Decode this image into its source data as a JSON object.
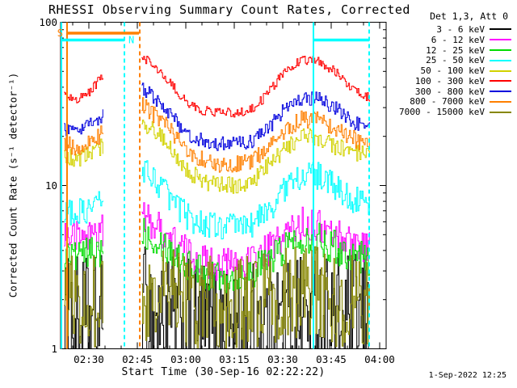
{
  "chart_data": {
    "type": "line",
    "title": "RHESSI Observing Summary Count Rates, Corrected",
    "legend_title": "Det 1,3, Att 0",
    "created": "1-Sep-2022 12:25",
    "x_axis": {
      "label": "Start Time (30-Sep-16 02:22:22)",
      "time_unit": "minutes since 00:00 UT",
      "range": [
        141.25,
        242.0
      ],
      "major_ticks": [
        {
          "t": 150,
          "label": "02:30"
        },
        {
          "t": 165,
          "label": "02:45"
        },
        {
          "t": 180,
          "label": "03:00"
        },
        {
          "t": 195,
          "label": "03:15"
        },
        {
          "t": 210,
          "label": "03:30"
        },
        {
          "t": 225,
          "label": "03:45"
        },
        {
          "t": 240,
          "label": "04:00"
        }
      ],
      "minor_tick_minutes": 5
    },
    "y_axis": {
      "label": "Corrected Count Rate (s⁻¹ detector⁻¹)",
      "scale": "log",
      "range": [
        1,
        100
      ],
      "major_ticks": [
        {
          "value": 100,
          "label": "100"
        },
        {
          "value": 10,
          "label": "10"
        },
        {
          "value": 1,
          "label": "1"
        }
      ]
    },
    "segment_times": {
      "seg1": [
        142.3,
        146,
        150,
        154.5
      ],
      "seg2": [
        166.3,
        171,
        176,
        181,
        186,
        191,
        196,
        201,
        206,
        211,
        216,
        221,
        226,
        231,
        237
      ]
    },
    "series": [
      {
        "name": "3 - 6 keV",
        "color": "#000000",
        "noise": 0.42,
        "seg1": [
          1.45,
          1.4,
          1.4,
          1.5
        ],
        "seg2": [
          1.7,
          1.55,
          1.45,
          1.35,
          1.3,
          1.3,
          1.3,
          1.35,
          1.45,
          1.55,
          1.6,
          1.55,
          1.5,
          1.45,
          1.4
        ]
      },
      {
        "name": "6 - 12 keV",
        "color": "#ff00ff",
        "noise": 0.105,
        "seg1": [
          5.0,
          4.8,
          5.0,
          5.4
        ],
        "seg2": [
          6.5,
          5.6,
          4.6,
          3.8,
          3.4,
          3.3,
          3.3,
          3.5,
          4.1,
          5.1,
          5.8,
          5.6,
          5.0,
          4.6,
          4.2
        ]
      },
      {
        "name": "12 - 25 keV",
        "color": "#00dc00",
        "noise": 0.105,
        "seg1": [
          3.8,
          3.7,
          3.8,
          4.1
        ],
        "seg2": [
          5.4,
          4.7,
          3.9,
          3.2,
          2.9,
          2.8,
          2.8,
          3.0,
          3.5,
          4.3,
          4.9,
          4.7,
          4.2,
          3.8,
          3.5
        ]
      },
      {
        "name": "25 - 50 keV",
        "color": "#00ffff",
        "noise": 0.085,
        "seg1": [
          7.0,
          6.7,
          7.2,
          8.2
        ],
        "seg2": [
          13,
          10.5,
          8.0,
          6.3,
          5.8,
          5.6,
          5.6,
          5.9,
          7.2,
          9.8,
          11.8,
          11.4,
          9.8,
          8.4,
          7.4
        ]
      },
      {
        "name": "50 - 100 keV",
        "color": "#d2d200",
        "noise": 0.055,
        "seg1": [
          15,
          14.5,
          15.5,
          17.5
        ],
        "seg2": [
          25,
          21,
          16.5,
          12,
          10.5,
          10,
          10,
          10.8,
          13.5,
          17,
          20,
          19.5,
          17.5,
          16,
          15
        ]
      },
      {
        "name": "100 - 300 keV",
        "color": "#ff0000",
        "noise": 0.03,
        "seg1": [
          35,
          33,
          37,
          48
        ],
        "seg2": [
          62,
          52,
          40,
          31,
          28.5,
          28,
          28,
          29.5,
          38,
          52,
          59,
          58,
          50,
          40,
          34
        ]
      },
      {
        "name": "300 - 800 keV",
        "color": "#0000dd",
        "noise": 0.045,
        "seg1": [
          22,
          21,
          23,
          27
        ],
        "seg2": [
          40,
          33,
          26,
          20,
          18.5,
          18,
          18,
          19,
          23,
          30,
          34,
          34,
          30,
          25,
          22
        ]
      },
      {
        "name": "800 - 7000 keV",
        "color": "#ff8000",
        "noise": 0.055,
        "seg1": [
          18,
          17,
          18,
          21
        ],
        "seg2": [
          31,
          26,
          21,
          15.5,
          14,
          13.5,
          13.5,
          14.5,
          17.5,
          22,
          25.5,
          25,
          22.5,
          19.5,
          17.5
        ]
      },
      {
        "name": "7000 - 15000 keV",
        "color": "#878700",
        "noise": 0.3,
        "seg1": [
          1.9,
          1.85,
          1.9,
          2.0
        ],
        "seg2": [
          2.2,
          2.1,
          2.0,
          1.9,
          1.85,
          1.85,
          1.85,
          1.9,
          2.0,
          2.1,
          2.2,
          2.15,
          2.05,
          2.0,
          1.95
        ]
      }
    ],
    "overlays": {
      "vlines": [
        {
          "t": 141.5,
          "color": "#00ffff",
          "style": "solid",
          "name": "night1-start-line"
        },
        {
          "t": 143.25,
          "color": "#ff8000",
          "style": "solid",
          "name": "saa-start-line"
        },
        {
          "t": 161.0,
          "color": "#00ffff",
          "style": "dashed",
          "name": "night1-end-line"
        },
        {
          "t": 165.75,
          "color": "#ff8000",
          "style": "dashed",
          "name": "saa-end-line"
        },
        {
          "t": 219.5,
          "color": "#00ffff",
          "style": "solid",
          "name": "night2-start-line"
        },
        {
          "t": 236.75,
          "color": "#00ffff",
          "style": "dashed",
          "name": "night2-end-line"
        }
      ],
      "bars": [
        {
          "t0": 143.25,
          "t1": 165.5,
          "track": "saa",
          "color": "#ff8000",
          "label": "S",
          "label_side": "left"
        },
        {
          "t0": 141.5,
          "t1": 161.0,
          "track": "night",
          "color": "#00ffff",
          "label": "N",
          "label_side": "right"
        },
        {
          "t0": 219.5,
          "t1": 236.75,
          "track": "night",
          "color": "#00ffff",
          "label": "",
          "label_side": "none"
        }
      ]
    }
  }
}
